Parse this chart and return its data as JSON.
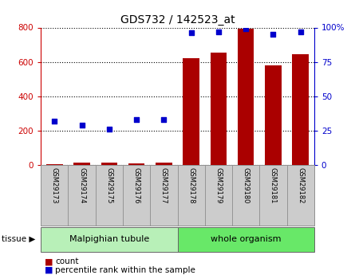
{
  "title": "GDS732 / 142523_at",
  "samples": [
    "GSM29173",
    "GSM29174",
    "GSM29175",
    "GSM29176",
    "GSM29177",
    "GSM29178",
    "GSM29179",
    "GSM29180",
    "GSM29181",
    "GSM29182"
  ],
  "counts": [
    5,
    14,
    13,
    8,
    16,
    620,
    655,
    795,
    580,
    645
  ],
  "percentiles": [
    32,
    29,
    26,
    33,
    33,
    96,
    97,
    99,
    95,
    97
  ],
  "ylim_left": [
    0,
    800
  ],
  "ylim_right": [
    0,
    100
  ],
  "yticks_left": [
    0,
    200,
    400,
    600,
    800
  ],
  "yticks_right": [
    0,
    25,
    50,
    75,
    100
  ],
  "tissue_groups": [
    {
      "label": "Malpighian tubule",
      "start": 0,
      "end": 4,
      "color": "#b8f0b8"
    },
    {
      "label": "whole organism",
      "start": 5,
      "end": 9,
      "color": "#68e868"
    }
  ],
  "bar_color": "#aa0000",
  "dot_color": "#0000cc",
  "bar_width": 0.6,
  "left_axis_color": "#cc0000",
  "right_axis_color": "#0000cc",
  "grid_color": "#000000",
  "bg_color": "#ffffff",
  "tick_bg_color": "#cccccc",
  "legend_count_color": "#aa0000",
  "legend_pct_color": "#0000cc"
}
